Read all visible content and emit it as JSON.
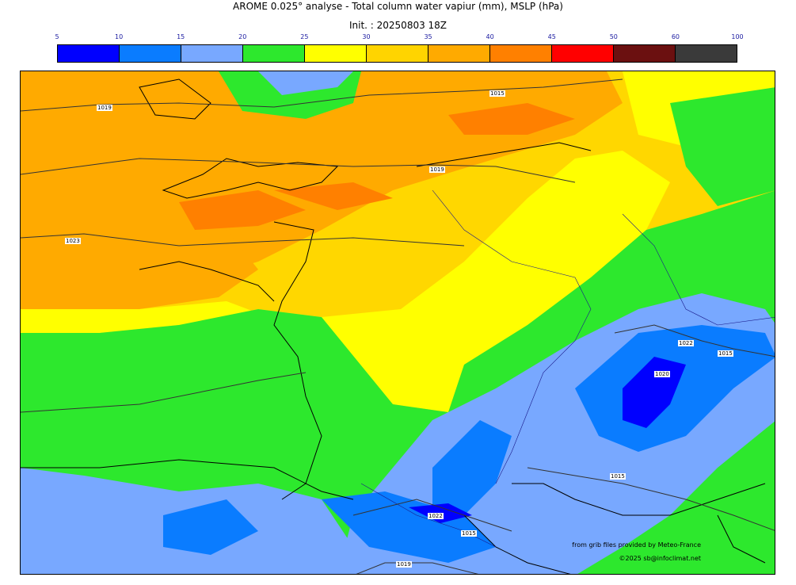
{
  "title": "AROME 0.025° analyse - Total column water vapiur (mm), MSLP (hPa)",
  "subtitle": "Init. : 20250803 18Z",
  "colorbar": {
    "ticks": [
      "5",
      "10",
      "15",
      "20",
      "25",
      "30",
      "35",
      "40",
      "45",
      "50",
      "60",
      "100"
    ],
    "colors": [
      "#0000ff",
      "#0a7cff",
      "#78a8ff",
      "#2de82d",
      "#ffff00",
      "#ffd400",
      "#ffaa00",
      "#ff8000",
      "#ff0000",
      "#6b1010",
      "#3a3a3a"
    ]
  },
  "isobar_labels": [
    "1019",
    "1015",
    "1019",
    "1023",
    "1022",
    "1015",
    "1020",
    "1015",
    "1022",
    "1015",
    "1019"
  ],
  "credits": {
    "line1": "from grib files provided by Meteo-France",
    "line2": "©2025 sb@infoclimat.net"
  }
}
